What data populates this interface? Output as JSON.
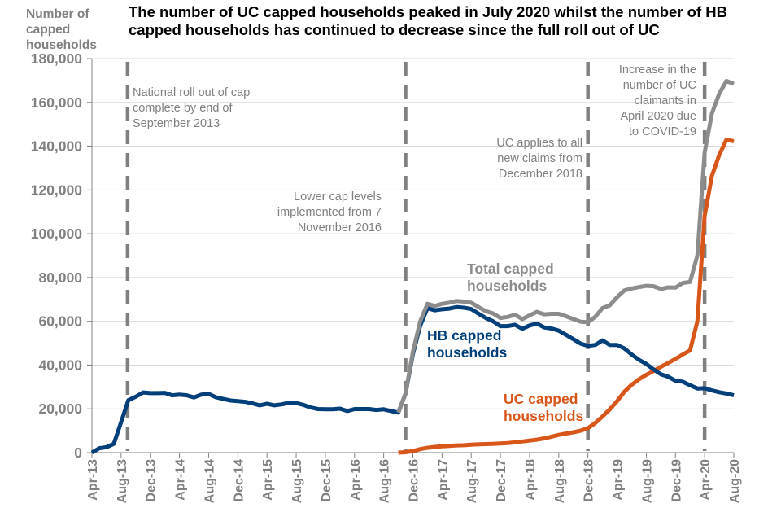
{
  "chart_data": {
    "type": "line",
    "title": "The number of UC capped households peaked in July 2020 whilst the number of HB capped households has continued to decrease since the full roll out of UC",
    "title_lines": [
      "The number of UC capped households peaked in July 2020 whilst the number of HB",
      "capped households has continued to decrease since the full roll out of UC"
    ],
    "ylabel": "Number of capped households",
    "ylabel_lines": [
      "Number of",
      "capped",
      "households"
    ],
    "xlabel": "",
    "ylim": [
      0,
      180000
    ],
    "yticks": [
      0,
      20000,
      40000,
      60000,
      80000,
      100000,
      120000,
      140000,
      160000,
      180000
    ],
    "ytick_labels": [
      "0",
      "20,000",
      "40,000",
      "60,000",
      "80,000",
      "100,000",
      "120,000",
      "140,000",
      "160,000",
      "180,000"
    ],
    "x_start": "Apr-13",
    "x_end": "Aug-20",
    "xtick_labels": [
      "Apr-13",
      "Aug-13",
      "Dec-13",
      "Apr-14",
      "Aug-14",
      "Dec-14",
      "Apr-15",
      "Aug-15",
      "Dec-15",
      "Apr-16",
      "Aug-16",
      "Dec-16",
      "Apr-17",
      "Aug-17",
      "Dec-17",
      "Apr-18",
      "Aug-18",
      "Dec-18",
      "Apr-19",
      "Aug-19",
      "Dec-19",
      "Apr-20",
      "Aug-20"
    ],
    "grid": "horizontal",
    "series": [
      {
        "name": "HB capped households",
        "color": "#003f7a",
        "label_lines": [
          "HB capped",
          "households"
        ],
        "points": [
          [
            "Apr-13",
            0
          ],
          [
            "May-13",
            2000
          ],
          [
            "Jun-13",
            2500
          ],
          [
            "Jul-13",
            4000
          ],
          [
            "Aug-13",
            14000
          ],
          [
            "Sep-13",
            24000
          ],
          [
            "Oct-13",
            25500
          ],
          [
            "Nov-13",
            27500
          ],
          [
            "Dec-13",
            27200
          ],
          [
            "Jan-14",
            27200
          ],
          [
            "Feb-14",
            27300
          ],
          [
            "Mar-14",
            26200
          ],
          [
            "Apr-14",
            26500
          ],
          [
            "May-14",
            26200
          ],
          [
            "Jun-14",
            25200
          ],
          [
            "Jul-14",
            26500
          ],
          [
            "Aug-14",
            26800
          ],
          [
            "Sep-14",
            25300
          ],
          [
            "Oct-14",
            24500
          ],
          [
            "Nov-14",
            23800
          ],
          [
            "Dec-14",
            23500
          ],
          [
            "Jan-15",
            23200
          ],
          [
            "Feb-15",
            22500
          ],
          [
            "Mar-15",
            21600
          ],
          [
            "Apr-15",
            22300
          ],
          [
            "May-15",
            21600
          ],
          [
            "Jun-15",
            22000
          ],
          [
            "Jul-15",
            22800
          ],
          [
            "Aug-15",
            22700
          ],
          [
            "Sep-15",
            21800
          ],
          [
            "Oct-15",
            20600
          ],
          [
            "Nov-15",
            19900
          ],
          [
            "Dec-15",
            19800
          ],
          [
            "Jan-16",
            19800
          ],
          [
            "Feb-16",
            20100
          ],
          [
            "Mar-16",
            19000
          ],
          [
            "Apr-16",
            19900
          ],
          [
            "May-16",
            19900
          ],
          [
            "Jun-16",
            19900
          ],
          [
            "Jul-16",
            19500
          ],
          [
            "Aug-16",
            19800
          ],
          [
            "Sep-16",
            19000
          ],
          [
            "Oct-16",
            18300
          ],
          [
            "Nov-16",
            27000
          ],
          [
            "Dec-16",
            45000
          ],
          [
            "Jan-17",
            58000
          ],
          [
            "Feb-17",
            66000
          ],
          [
            "Mar-17",
            65000
          ],
          [
            "Apr-17",
            65500
          ],
          [
            "May-17",
            65800
          ],
          [
            "Jun-17",
            66500
          ],
          [
            "Jul-17",
            66200
          ],
          [
            "Aug-17",
            65600
          ],
          [
            "Sep-17",
            63500
          ],
          [
            "Oct-17",
            61500
          ],
          [
            "Nov-17",
            60000
          ],
          [
            "Dec-17",
            57800
          ],
          [
            "Jan-18",
            57800
          ],
          [
            "Feb-18",
            58400
          ],
          [
            "Mar-18",
            56600
          ],
          [
            "Apr-18",
            58100
          ],
          [
            "May-18",
            59000
          ],
          [
            "Jun-18",
            57200
          ],
          [
            "Jul-18",
            56700
          ],
          [
            "Aug-18",
            55700
          ],
          [
            "Sep-18",
            53800
          ],
          [
            "Oct-18",
            51800
          ],
          [
            "Nov-18",
            49800
          ],
          [
            "Dec-18",
            48800
          ],
          [
            "Jan-19",
            49200
          ],
          [
            "Feb-19",
            51300
          ],
          [
            "Mar-19",
            49200
          ],
          [
            "Apr-19",
            49200
          ],
          [
            "May-19",
            47600
          ],
          [
            "Jun-19",
            44800
          ],
          [
            "Jul-19",
            42400
          ],
          [
            "Aug-19",
            40500
          ],
          [
            "Sep-19",
            38000
          ],
          [
            "Oct-19",
            35800
          ],
          [
            "Nov-19",
            34700
          ],
          [
            "Dec-19",
            32800
          ],
          [
            "Jan-20",
            32400
          ],
          [
            "Feb-20",
            30800
          ],
          [
            "Mar-20",
            29300
          ],
          [
            "Apr-20",
            29400
          ],
          [
            "May-20",
            28400
          ],
          [
            "Jun-20",
            27600
          ],
          [
            "Jul-20",
            27000
          ],
          [
            "Aug-20",
            26200
          ]
        ]
      },
      {
        "name": "Total capped households",
        "color": "#8c8c8c",
        "label_lines": [
          "Total capped",
          "households"
        ],
        "points": [
          [
            "Oct-16",
            18300
          ],
          [
            "Nov-16",
            27000
          ],
          [
            "Dec-16",
            46000
          ],
          [
            "Jan-17",
            60000
          ],
          [
            "Feb-17",
            68000
          ],
          [
            "Mar-17",
            67000
          ],
          [
            "Apr-17",
            68000
          ],
          [
            "May-17",
            68500
          ],
          [
            "Jun-17",
            69300
          ],
          [
            "Jul-17",
            69000
          ],
          [
            "Aug-17",
            68500
          ],
          [
            "Sep-17",
            66500
          ],
          [
            "Oct-17",
            64600
          ],
          [
            "Nov-17",
            63600
          ],
          [
            "Dec-17",
            61500
          ],
          [
            "Jan-18",
            62000
          ],
          [
            "Feb-18",
            63000
          ],
          [
            "Mar-18",
            61000
          ],
          [
            "Apr-18",
            62700
          ],
          [
            "May-18",
            64300
          ],
          [
            "Jun-18",
            63200
          ],
          [
            "Jul-18",
            63400
          ],
          [
            "Aug-18",
            63400
          ],
          [
            "Sep-18",
            62300
          ],
          [
            "Oct-18",
            61000
          ],
          [
            "Nov-18",
            59800
          ],
          [
            "Dec-18",
            59600
          ],
          [
            "Jan-19",
            62000
          ],
          [
            "Feb-19",
            66000
          ],
          [
            "Mar-19",
            67300
          ],
          [
            "Apr-19",
            71000
          ],
          [
            "May-19",
            74100
          ],
          [
            "Jun-19",
            75000
          ],
          [
            "Jul-19",
            75600
          ],
          [
            "Aug-19",
            76200
          ],
          [
            "Sep-19",
            76000
          ],
          [
            "Oct-19",
            74800
          ],
          [
            "Nov-19",
            75500
          ],
          [
            "Dec-19",
            75400
          ],
          [
            "Jan-20",
            77500
          ],
          [
            "Feb-20",
            78000
          ],
          [
            "Mar-20",
            90000
          ],
          [
            "Apr-20",
            137000
          ],
          [
            "May-20",
            155000
          ],
          [
            "Jun-20",
            164000
          ],
          [
            "Jul-20",
            169800
          ],
          [
            "Aug-20",
            168400
          ]
        ]
      },
      {
        "name": "UC capped households",
        "color": "#d9561a",
        "label_lines": [
          "UC capped",
          "households"
        ],
        "points": [
          [
            "Oct-16",
            0
          ],
          [
            "Nov-16",
            200
          ],
          [
            "Dec-16",
            700
          ],
          [
            "Jan-17",
            1600
          ],
          [
            "Feb-17",
            2200
          ],
          [
            "Mar-17",
            2600
          ],
          [
            "Apr-17",
            2900
          ],
          [
            "May-17",
            3100
          ],
          [
            "Jun-17",
            3300
          ],
          [
            "Jul-17",
            3400
          ],
          [
            "Aug-17",
            3600
          ],
          [
            "Sep-17",
            3800
          ],
          [
            "Oct-17",
            3900
          ],
          [
            "Nov-17",
            4000
          ],
          [
            "Dec-17",
            4200
          ],
          [
            "Jan-18",
            4400
          ],
          [
            "Feb-18",
            4700
          ],
          [
            "Mar-18",
            5100
          ],
          [
            "Apr-18",
            5500
          ],
          [
            "May-18",
            5900
          ],
          [
            "Jun-18",
            6500
          ],
          [
            "Jul-18",
            7300
          ],
          [
            "Aug-18",
            8100
          ],
          [
            "Sep-18",
            8700
          ],
          [
            "Oct-18",
            9300
          ],
          [
            "Nov-18",
            10000
          ],
          [
            "Dec-18",
            11200
          ],
          [
            "Jan-19",
            13500
          ],
          [
            "Feb-19",
            16500
          ],
          [
            "Mar-19",
            19800
          ],
          [
            "Apr-19",
            23500
          ],
          [
            "May-19",
            27800
          ],
          [
            "Jun-19",
            31000
          ],
          [
            "Jul-19",
            33500
          ],
          [
            "Aug-19",
            35500
          ],
          [
            "Sep-19",
            37300
          ],
          [
            "Oct-19",
            39200
          ],
          [
            "Nov-19",
            41000
          ],
          [
            "Dec-19",
            42800
          ],
          [
            "Jan-20",
            44800
          ],
          [
            "Feb-20",
            46700
          ],
          [
            "Mar-20",
            60000
          ],
          [
            "Apr-20",
            108000
          ],
          [
            "May-20",
            126500
          ],
          [
            "Jun-20",
            136000
          ],
          [
            "Jul-20",
            143000
          ],
          [
            "Aug-20",
            142200
          ]
        ]
      }
    ],
    "reference_lines": [
      {
        "at": "Aug-13",
        "style": "dashed",
        "color": "#808080"
      },
      {
        "at": "Nov-16",
        "style": "dashed",
        "color": "#808080"
      },
      {
        "at": "Dec-18",
        "style": "dashed",
        "color": "#808080"
      },
      {
        "at": "Apr-20",
        "style": "dashed",
        "color": "#808080"
      }
    ],
    "annotations": [
      {
        "lines": [
          "National roll out of cap",
          "complete by end of",
          "September 2013"
        ],
        "anchor": "Aug-13",
        "align": "left"
      },
      {
        "lines": [
          "Lower cap levels",
          "implemented from 7",
          "November 2016"
        ],
        "anchor": "Nov-16",
        "align": "right"
      },
      {
        "lines": [
          "UC applies to all",
          "new claims from",
          "December 2018"
        ],
        "anchor": "Dec-18",
        "align": "right"
      },
      {
        "lines": [
          "Increase  in the",
          "number  of UC",
          "claimants in",
          "April 2020 due",
          "to COVID-19"
        ],
        "anchor": "Apr-20",
        "align": "right"
      }
    ]
  }
}
